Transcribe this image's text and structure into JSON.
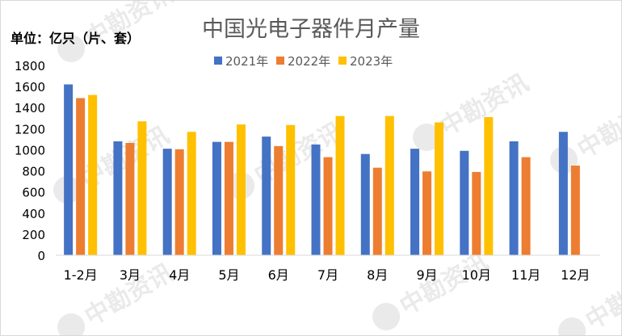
{
  "chart_data": {
    "type": "bar",
    "title": "中国光电子器件月产量",
    "unit_label": "单位：亿只（片、套）",
    "categories": [
      "1-2月",
      "3月",
      "4月",
      "5月",
      "6月",
      "7月",
      "8月",
      "9月",
      "10月",
      "11月",
      "12月"
    ],
    "series": [
      {
        "name": "2021年",
        "color": "#4472C4",
        "values": [
          1620,
          1080,
          1010,
          1075,
          1125,
          1050,
          960,
          1010,
          990,
          1080,
          1170
        ]
      },
      {
        "name": "2022年",
        "color": "#ED7D31",
        "values": [
          1490,
          1065,
          1005,
          1075,
          1035,
          930,
          830,
          795,
          790,
          930,
          850
        ]
      },
      {
        "name": "2023年",
        "color": "#FFC000",
        "values": [
          1520,
          1270,
          1170,
          1240,
          1235,
          1320,
          1320,
          1260,
          1310,
          null,
          null
        ]
      }
    ],
    "y_ticks": [
      0,
      200,
      400,
      600,
      800,
      1000,
      1200,
      1400,
      1600,
      1800
    ],
    "ylim": [
      0,
      1800
    ],
    "grid": false,
    "legend": "top-center"
  },
  "watermark": {
    "text": "中勘资讯",
    "color": "#d9d9d9"
  }
}
